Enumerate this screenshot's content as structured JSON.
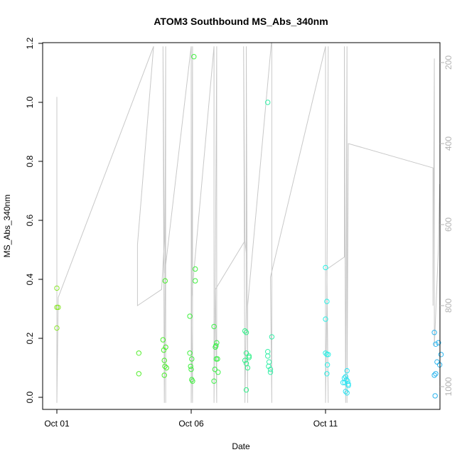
{
  "chart_data": {
    "type": "scatter",
    "title": "ATOM3 Southbound MS_Abs_340nm",
    "xlabel": "Date",
    "ylabel": "MS_Abs_340nm",
    "x_range_days": [
      0,
      14.6
    ],
    "ylim": [
      -0.04,
      1.2
    ],
    "y_ticks": [
      "0.0",
      "0.2",
      "0.4",
      "0.6",
      "0.8",
      "1.0",
      "1.2"
    ],
    "x_ticks": [
      {
        "label": "Oct 01",
        "day": 0
      },
      {
        "label": "Oct 06",
        "day": 5
      },
      {
        "label": "Oct 11",
        "day": 10
      }
    ],
    "right_axis": {
      "ticks": [
        "200",
        "400",
        "600",
        "800",
        "1000"
      ],
      "range_top": 140,
      "range_bottom": 1070,
      "color": "#b3b3b3"
    },
    "grid": false,
    "color_scale": "time (green to blue)",
    "points": [
      {
        "x": 0.0,
        "y": 0.37,
        "color": "#8ce62e"
      },
      {
        "x": 0.0,
        "y": 0.305,
        "color": "#8ce62e"
      },
      {
        "x": 0.05,
        "y": 0.305,
        "color": "#8ce62e"
      },
      {
        "x": 0.0,
        "y": 0.235,
        "color": "#8ce62e"
      },
      {
        "x": 3.05,
        "y": 0.15,
        "color": "#52ee2a"
      },
      {
        "x": 3.05,
        "y": 0.08,
        "color": "#52ee2a"
      },
      {
        "x": 3.95,
        "y": 0.195,
        "color": "#4aef2b"
      },
      {
        "x": 4.05,
        "y": 0.17,
        "color": "#4aef2b"
      },
      {
        "x": 3.98,
        "y": 0.16,
        "color": "#4aef2b"
      },
      {
        "x": 4.0,
        "y": 0.125,
        "color": "#4aef2b"
      },
      {
        "x": 4.02,
        "y": 0.105,
        "color": "#4aef2b"
      },
      {
        "x": 4.08,
        "y": 0.1,
        "color": "#4aef2b"
      },
      {
        "x": 4.0,
        "y": 0.075,
        "color": "#4aef2b"
      },
      {
        "x": 4.03,
        "y": 0.395,
        "color": "#4aef2b"
      },
      {
        "x": 4.95,
        "y": 0.275,
        "color": "#3ff03e"
      },
      {
        "x": 4.95,
        "y": 0.15,
        "color": "#3ff03e"
      },
      {
        "x": 5.02,
        "y": 0.13,
        "color": "#3ff03e"
      },
      {
        "x": 4.98,
        "y": 0.105,
        "color": "#3ff03e"
      },
      {
        "x": 5.0,
        "y": 0.095,
        "color": "#3ff03e"
      },
      {
        "x": 5.02,
        "y": 0.06,
        "color": "#3ff03e"
      },
      {
        "x": 5.05,
        "y": 0.055,
        "color": "#3ff03e"
      },
      {
        "x": 5.1,
        "y": 1.155,
        "color": "#3ff03e"
      },
      {
        "x": 5.15,
        "y": 0.435,
        "color": "#3ff03e"
      },
      {
        "x": 5.15,
        "y": 0.395,
        "color": "#3ff03e"
      },
      {
        "x": 5.85,
        "y": 0.24,
        "color": "#3cf048"
      },
      {
        "x": 5.95,
        "y": 0.185,
        "color": "#3cf048"
      },
      {
        "x": 5.92,
        "y": 0.175,
        "color": "#3cf048"
      },
      {
        "x": 5.9,
        "y": 0.17,
        "color": "#3cf048"
      },
      {
        "x": 5.93,
        "y": 0.13,
        "color": "#3cf048"
      },
      {
        "x": 5.98,
        "y": 0.13,
        "color": "#3cf048"
      },
      {
        "x": 5.88,
        "y": 0.095,
        "color": "#3cf048"
      },
      {
        "x": 6.0,
        "y": 0.085,
        "color": "#3cf048"
      },
      {
        "x": 5.85,
        "y": 0.055,
        "color": "#3cf048"
      },
      {
        "x": 7.0,
        "y": 0.225,
        "color": "#33f08a"
      },
      {
        "x": 7.05,
        "y": 0.22,
        "color": "#33f08a"
      },
      {
        "x": 7.05,
        "y": 0.15,
        "color": "#33f08a"
      },
      {
        "x": 7.15,
        "y": 0.14,
        "color": "#33f08a"
      },
      {
        "x": 7.15,
        "y": 0.135,
        "color": "#33f08a"
      },
      {
        "x": 7.0,
        "y": 0.125,
        "color": "#33f08a"
      },
      {
        "x": 7.05,
        "y": 0.115,
        "color": "#33f08a"
      },
      {
        "x": 7.1,
        "y": 0.1,
        "color": "#33f08a"
      },
      {
        "x": 7.05,
        "y": 0.025,
        "color": "#33f08a"
      },
      {
        "x": 7.85,
        "y": 1.0,
        "color": "#36efa8"
      },
      {
        "x": 7.85,
        "y": 0.155,
        "color": "#36efa8"
      },
      {
        "x": 7.85,
        "y": 0.14,
        "color": "#36efa8"
      },
      {
        "x": 7.9,
        "y": 0.12,
        "color": "#36efa8"
      },
      {
        "x": 7.88,
        "y": 0.105,
        "color": "#36efa8"
      },
      {
        "x": 7.95,
        "y": 0.095,
        "color": "#36efa8"
      },
      {
        "x": 7.95,
        "y": 0.085,
        "color": "#36efa8"
      },
      {
        "x": 8.0,
        "y": 0.205,
        "color": "#36efa8"
      },
      {
        "x": 10.0,
        "y": 0.44,
        "color": "#2ef0e6"
      },
      {
        "x": 10.05,
        "y": 0.325,
        "color": "#2ef0e6"
      },
      {
        "x": 10.0,
        "y": 0.265,
        "color": "#2ef0e6"
      },
      {
        "x": 10.0,
        "y": 0.15,
        "color": "#2ef0e6"
      },
      {
        "x": 10.05,
        "y": 0.145,
        "color": "#2ef0e6"
      },
      {
        "x": 10.1,
        "y": 0.145,
        "color": "#2ef0e6"
      },
      {
        "x": 10.07,
        "y": 0.11,
        "color": "#2ef0e6"
      },
      {
        "x": 10.05,
        "y": 0.08,
        "color": "#2ef0e6"
      },
      {
        "x": 10.8,
        "y": 0.09,
        "color": "#2ee4f2"
      },
      {
        "x": 10.75,
        "y": 0.07,
        "color": "#2ee4f2"
      },
      {
        "x": 10.7,
        "y": 0.065,
        "color": "#2ee4f2"
      },
      {
        "x": 10.78,
        "y": 0.06,
        "color": "#2ee4f2"
      },
      {
        "x": 10.82,
        "y": 0.055,
        "color": "#2ee4f2"
      },
      {
        "x": 10.65,
        "y": 0.05,
        "color": "#2ee4f2"
      },
      {
        "x": 10.72,
        "y": 0.05,
        "color": "#2ee4f2"
      },
      {
        "x": 10.85,
        "y": 0.045,
        "color": "#2ee4f2"
      },
      {
        "x": 10.85,
        "y": 0.04,
        "color": "#2ee4f2"
      },
      {
        "x": 10.75,
        "y": 0.02,
        "color": "#2ee4f2"
      },
      {
        "x": 10.8,
        "y": 0.015,
        "color": "#2ee4f2"
      },
      {
        "x": 14.05,
        "y": 0.22,
        "color": "#2ab4ee"
      },
      {
        "x": 14.2,
        "y": 0.185,
        "color": "#2ab4ee"
      },
      {
        "x": 14.1,
        "y": 0.18,
        "color": "#2ab4ee"
      },
      {
        "x": 14.3,
        "y": 0.145,
        "color": "#2ab4ee"
      },
      {
        "x": 14.15,
        "y": 0.12,
        "color": "#2ab4ee"
      },
      {
        "x": 14.25,
        "y": 0.11,
        "color": "#2ab4ee"
      },
      {
        "x": 14.1,
        "y": 0.08,
        "color": "#2ab4ee"
      },
      {
        "x": 14.05,
        "y": 0.075,
        "color": "#2ab4ee"
      },
      {
        "x": 14.08,
        "y": 0.005,
        "color": "#2ab4ee"
      }
    ],
    "pressure_line": {
      "name": "",
      "color": "#c8c8c8",
      "points": [
        [
          0.0,
          285
        ],
        [
          0.0,
          340
        ],
        [
          0.0,
          1040
        ],
        [
          0.05,
          780
        ],
        [
          3.6,
          160
        ],
        [
          3.0,
          650
        ],
        [
          3.0,
          800
        ],
        [
          3.9,
          760
        ],
        [
          4.0,
          640
        ],
        [
          3.95,
          160
        ],
        [
          4.0,
          1040
        ],
        [
          4.05,
          500
        ],
        [
          4.02,
          720
        ],
        [
          4.05,
          160
        ],
        [
          4.05,
          1040
        ],
        [
          4.05,
          650
        ],
        [
          4.05,
          700
        ],
        [
          5.0,
          160
        ],
        [
          5.0,
          1040
        ],
        [
          5.02,
          700
        ],
        [
          5.05,
          160
        ],
        [
          5.05,
          1040
        ],
        [
          5.0,
          790
        ],
        [
          5.85,
          160
        ],
        [
          5.85,
          1040
        ],
        [
          5.9,
          700
        ],
        [
          5.95,
          160
        ],
        [
          5.95,
          1040
        ],
        [
          5.9,
          760
        ],
        [
          7.0,
          640
        ],
        [
          7.05,
          670
        ],
        [
          7.0,
          640
        ],
        [
          6.95,
          160
        ],
        [
          7.0,
          1040
        ],
        [
          7.05,
          800
        ],
        [
          7.05,
          160
        ],
        [
          7.1,
          1040
        ],
        [
          7.1,
          800
        ],
        [
          8.0,
          140
        ],
        [
          8.0,
          1040
        ],
        [
          7.95,
          730
        ],
        [
          10.0,
          160
        ],
        [
          10.0,
          1040
        ],
        [
          10.05,
          800
        ],
        [
          10.1,
          160
        ],
        [
          10.05,
          780
        ],
        [
          10.1,
          1040
        ],
        [
          10.05,
          710
        ],
        [
          10.7,
          680
        ],
        [
          10.7,
          160
        ],
        [
          10.75,
          1040
        ],
        [
          10.8,
          160
        ],
        [
          10.8,
          1040
        ],
        [
          10.85,
          400
        ],
        [
          14.0,
          460
        ],
        [
          14.0,
          800
        ],
        [
          14.05,
          190
        ],
        [
          14.05,
          900
        ],
        [
          14.2,
          660
        ],
        [
          14.25,
          500
        ],
        [
          14.3,
          650
        ]
      ]
    }
  }
}
